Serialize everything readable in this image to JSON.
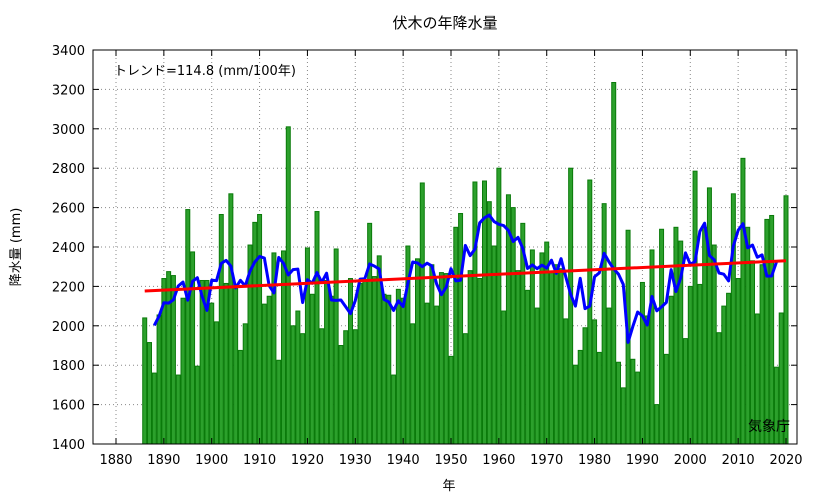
{
  "chart_data": {
    "type": "bar",
    "title": "伏木の年降水量",
    "xlabel": "年",
    "ylabel": "降水量 (mm)",
    "annotation": "トレンド=114.8 (mm/100年)",
    "credit": "気象庁",
    "xlim": [
      1873,
      2025
    ],
    "ylim": [
      1400,
      3400
    ],
    "x_ticks": [
      1880,
      1890,
      1900,
      1910,
      1920,
      1930,
      1940,
      1950,
      1960,
      1970,
      1980,
      1990,
      2000,
      2010,
      2020
    ],
    "y_ticks": [
      1400,
      1600,
      1800,
      2000,
      2200,
      2400,
      2600,
      2800,
      3000,
      3200,
      3400
    ],
    "grid": true,
    "colors": {
      "bars": "#2ca02c",
      "bar_edge": "#0a7a0a",
      "moving_average": "#0000ff",
      "trend": "#ff0000"
    },
    "start_year": 1886,
    "values": [
      2040,
      1915,
      1760,
      2055,
      2240,
      2275,
      2255,
      1750,
      2140,
      2590,
      2375,
      1795,
      2230,
      2230,
      2115,
      2020,
      2565,
      2215,
      2670,
      2190,
      1875,
      2010,
      2410,
      2525,
      2565,
      2110,
      2150,
      2370,
      1825,
      2380,
      3010,
      2000,
      2075,
      1960,
      2395,
      2160,
      2580,
      1985,
      2230,
      2150,
      2390,
      1900,
      1975,
      2240,
      1980,
      2215,
      2230,
      2520,
      2250,
      2355,
      2160,
      2155,
      1750,
      2185,
      2140,
      2405,
      2010,
      2340,
      2725,
      2115,
      2310,
      2100,
      2270,
      2265,
      1845,
      2500,
      2570,
      1960,
      2280,
      2730,
      2240,
      2735,
      2630,
      2405,
      2800,
      2075,
      2665,
      2600,
      2280,
      2520,
      2180,
      2385,
      2090,
      2370,
      2425,
      2270,
      2310,
      2290,
      2035,
      2800,
      1800,
      1875,
      1990,
      2740,
      2030,
      1865,
      2620,
      2090,
      3235,
      1815,
      1685,
      2485,
      1830,
      1765,
      2220,
      2050,
      2385,
      1600,
      2490,
      1855,
      2150,
      2500,
      2430,
      1935,
      2200,
      2785,
      2210,
      2500,
      2700,
      2410,
      1965,
      2100,
      2165,
      2670,
      2240,
      2850,
      2500,
      2330,
      2060,
      2310,
      2540,
      2560,
      1790,
      2065,
      2660
    ],
    "moving_average_window": 5,
    "trend_per_100yr": 114.8
  }
}
